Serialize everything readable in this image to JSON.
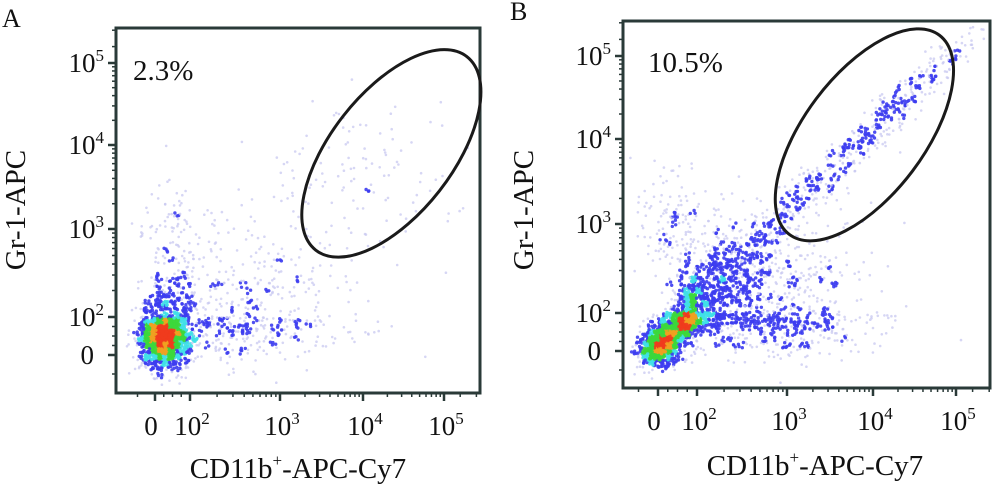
{
  "figure": {
    "panels": [
      "A",
      "B"
    ]
  },
  "chart_data": [
    {
      "type": "scatter",
      "subtype": "flow-cytometry-density-plot",
      "panel_label": "A",
      "title": "",
      "xlabel_main": "CD11b",
      "xlabel_sup": "+",
      "xlabel_rest": "-APC-Cy7",
      "ylabel": "Gr-1-APC",
      "x_ticks": [
        {
          "base": "0",
          "exp": ""
        },
        {
          "base": "10",
          "exp": "2"
        },
        {
          "base": "10",
          "exp": "3"
        },
        {
          "base": "10",
          "exp": "4"
        },
        {
          "base": "10",
          "exp": "5"
        }
      ],
      "y_ticks": [
        {
          "base": "0",
          "exp": ""
        },
        {
          "base": "10",
          "exp": "2"
        },
        {
          "base": "10",
          "exp": "3"
        },
        {
          "base": "10",
          "exp": "4"
        },
        {
          "base": "10",
          "exp": "5"
        }
      ],
      "scale": "biexponential (log decades with zero)",
      "gate": {
        "shape": "ellipse",
        "percent_label": "2.3%",
        "center": [
          3.35,
          2.9
        ],
        "semi_axes": [
          1.45,
          0.72
        ],
        "rotation_deg": -52
      },
      "populations": [
        {
          "name": "main-cluster",
          "center": [
            0.25,
            0.45
          ],
          "spread": [
            0.35,
            0.38
          ],
          "count": 1500,
          "peak_density": "high"
        },
        {
          "name": "tail",
          "center": [
            1.3,
            1.0
          ],
          "spread": [
            0.75,
            0.55
          ],
          "count": 700,
          "peak_density": "low"
        },
        {
          "name": "upper-left-scatter",
          "center": [
            0.6,
            2.05
          ],
          "spread": [
            0.5,
            0.35
          ],
          "count": 70,
          "peak_density": "low"
        },
        {
          "name": "gated-cells",
          "center": [
            2.95,
            2.6
          ],
          "spread": [
            0.55,
            0.45
          ],
          "count": 120,
          "peak_density": "low"
        }
      ],
      "color_scale": [
        "#c8c8f0",
        "#3c3cf0",
        "#40e0e8",
        "#3cd83c",
        "#f0a020",
        "#f03c1e"
      ]
    },
    {
      "type": "scatter",
      "subtype": "flow-cytometry-density-plot",
      "panel_label": "B",
      "title": "",
      "xlabel_main": "CD11b",
      "xlabel_sup": "+",
      "xlabel_rest": "-APC-Cy7",
      "ylabel": "Gr-1-APC",
      "x_ticks": [
        {
          "base": "0",
          "exp": ""
        },
        {
          "base": "10",
          "exp": "2"
        },
        {
          "base": "10",
          "exp": "3"
        },
        {
          "base": "10",
          "exp": "4"
        },
        {
          "base": "10",
          "exp": "5"
        }
      ],
      "y_ticks": [
        {
          "base": "0",
          "exp": ""
        },
        {
          "base": "10",
          "exp": "2"
        },
        {
          "base": "10",
          "exp": "3"
        },
        {
          "base": "10",
          "exp": "4"
        },
        {
          "base": "10",
          "exp": "5"
        }
      ],
      "scale": "biexponential (log decades with zero)",
      "gate": {
        "shape": "ellipse",
        "percent_label": "10.5%",
        "center": [
          2.9,
          3.05
        ],
        "semi_axes": [
          1.45,
          0.7
        ],
        "rotation_deg": -53
      },
      "populations": [
        {
          "name": "low-cluster",
          "center": [
            0.05,
            0.1
          ],
          "spread": [
            0.25,
            0.25
          ],
          "count": 600,
          "peak_density": "medium"
        },
        {
          "name": "main-diagonal",
          "center": [
            0.75,
            0.85
          ],
          "spread": [
            0.45,
            0.35
          ],
          "count": 1700,
          "peak_density": "high"
        },
        {
          "name": "right-spread",
          "center": [
            1.8,
            1.0
          ],
          "spread": [
            0.6,
            0.55
          ],
          "count": 800,
          "peak_density": "low"
        },
        {
          "name": "upper-left-scatter",
          "center": [
            0.5,
            2.0
          ],
          "spread": [
            0.5,
            0.35
          ],
          "count": 140,
          "peak_density": "low"
        },
        {
          "name": "gated-diagonal",
          "center": [
            2.8,
            2.9
          ],
          "spread": [
            0.9,
            0.18
          ],
          "count": 600,
          "peak_density": "medium"
        }
      ],
      "color_scale": [
        "#c8c8f0",
        "#3c3cf0",
        "#40e0e8",
        "#3cd83c",
        "#f0a020",
        "#f03c1e"
      ]
    }
  ]
}
